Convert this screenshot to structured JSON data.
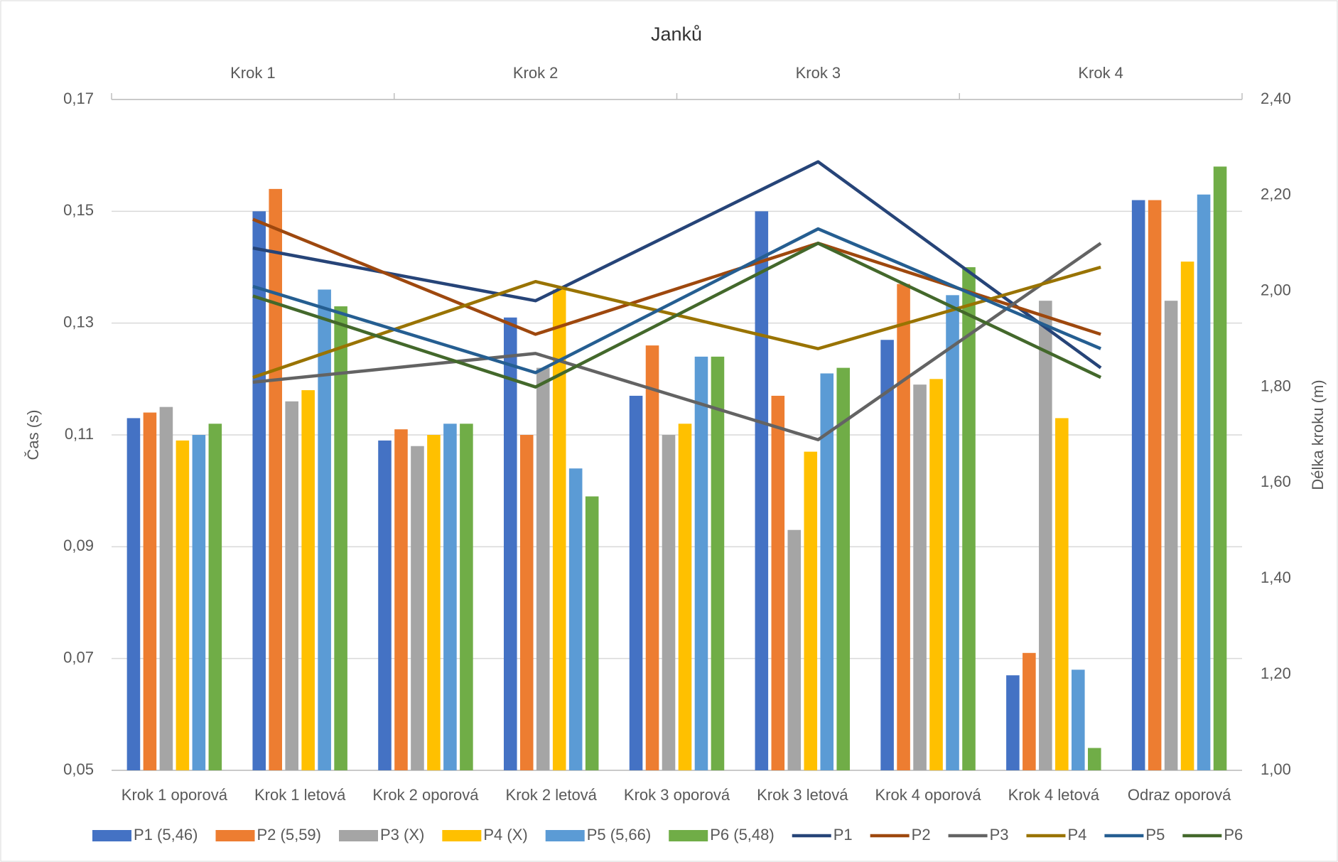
{
  "chart_data": [
    {
      "type": "bar",
      "title": "Janků",
      "y_label": "Čas (s)",
      "categories": [
        "Krok 1 oporová",
        "Krok 1 letová",
        "Krok 2 oporová",
        "Krok 2 letová",
        "Krok 3 oporová",
        "Krok 3 letová",
        "Krok 4 oporová",
        "Krok 4 letová",
        "Odraz oporová"
      ],
      "series": [
        {
          "name": "P1 (5,46)",
          "color": "#4472c4",
          "values": [
            0.113,
            0.15,
            0.109,
            0.131,
            0.117,
            0.15,
            0.127,
            0.067,
            0.152
          ]
        },
        {
          "name": "P2 (5,59)",
          "color": "#ed7d31",
          "values": [
            0.114,
            0.154,
            0.111,
            0.11,
            0.126,
            0.117,
            0.137,
            0.071,
            0.152
          ]
        },
        {
          "name": "P3 (X)",
          "color": "#a5a5a5",
          "values": [
            0.115,
            0.116,
            0.108,
            0.122,
            0.11,
            0.093,
            0.119,
            0.134,
            0.134
          ]
        },
        {
          "name": "P4 (X)",
          "color": "#ffc000",
          "values": [
            0.109,
            0.118,
            0.11,
            0.136,
            0.112,
            0.107,
            0.12,
            0.113,
            0.141
          ]
        },
        {
          "name": "P5 (5,66)",
          "color": "#5b9bd5",
          "values": [
            0.11,
            0.136,
            0.112,
            0.104,
            0.124,
            0.121,
            0.135,
            0.068,
            0.153
          ]
        },
        {
          "name": "P6 (5,48)",
          "color": "#70ad47",
          "values": [
            0.112,
            0.133,
            0.112,
            0.099,
            0.124,
            0.122,
            0.14,
            0.054,
            0.158
          ]
        }
      ],
      "ylim": [
        0.05,
        0.17
      ],
      "yticks": [
        {
          "value": 0.05,
          "label": "0,05"
        },
        {
          "value": 0.07,
          "label": "0,07"
        },
        {
          "value": 0.09,
          "label": "0,09"
        },
        {
          "value": 0.11,
          "label": "0,11"
        },
        {
          "value": 0.13,
          "label": "0,13"
        },
        {
          "value": 0.15,
          "label": "0,15"
        },
        {
          "value": 0.17,
          "label": "0,17"
        }
      ],
      "grid": true
    },
    {
      "type": "line",
      "y2_label": "Délka kroku (m)",
      "categories": [
        "Krok 1",
        "Krok 2",
        "Krok 3",
        "Krok 4"
      ],
      "series": [
        {
          "name": "P1",
          "color": "#264478",
          "axis": "y2",
          "values": [
            2.09,
            1.98,
            2.27,
            1.84
          ]
        },
        {
          "name": "P2",
          "color": "#9e480e",
          "axis": "y2",
          "values": [
            2.15,
            1.91,
            2.1,
            1.91
          ]
        },
        {
          "name": "P3",
          "color": "#636363",
          "axis": "y2",
          "values": [
            1.81,
            1.87,
            1.69,
            2.1
          ]
        },
        {
          "name": "P4",
          "color": "#997300",
          "axis": "y2",
          "values": [
            1.82,
            2.02,
            1.88,
            2.05
          ]
        },
        {
          "name": "P5",
          "color": "#255e91",
          "axis": "y2",
          "values": [
            2.01,
            1.83,
            2.13,
            1.88
          ]
        },
        {
          "name": "P6",
          "color": "#43682b",
          "axis": "y2",
          "values": [
            1.99,
            1.8,
            2.1,
            1.82
          ]
        }
      ],
      "y2lim": [
        1.0,
        2.4
      ],
      "y2ticks": [
        {
          "value": 1.0,
          "label": "1,00"
        },
        {
          "value": 1.2,
          "label": "1,20"
        },
        {
          "value": 1.4,
          "label": "1,40"
        },
        {
          "value": 1.6,
          "label": "1,60"
        },
        {
          "value": 1.8,
          "label": "1,80"
        },
        {
          "value": 2.0,
          "label": "2,00"
        },
        {
          "value": 2.2,
          "label": "2,20"
        },
        {
          "value": 2.4,
          "label": "2,40"
        }
      ]
    }
  ]
}
